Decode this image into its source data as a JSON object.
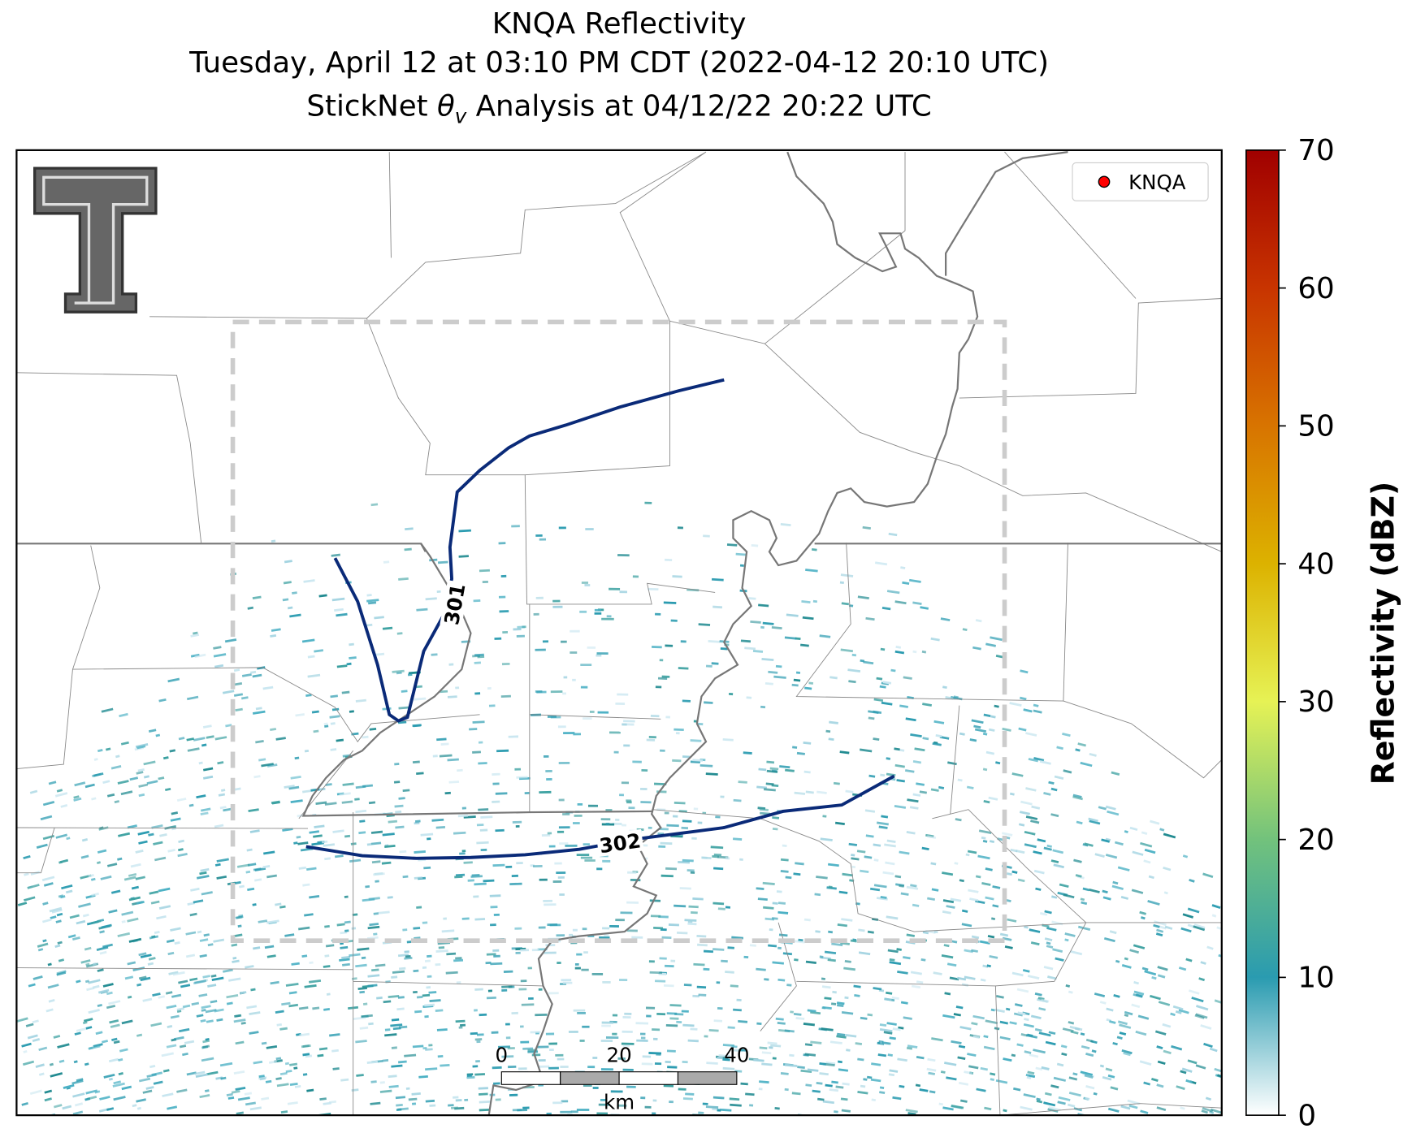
{
  "title": {
    "line1": "KNQA Reflectivity",
    "line2": "Tuesday, April 12 at 03:10 PM CDT (2022-04-12 20:10 UTC)",
    "line3": {
      "prefix": "StickNet ",
      "symbol": "θ",
      "subscript": "v",
      "suffix": " Analysis at 04/12/22 20:22 UTC"
    }
  },
  "legend": {
    "label": "KNQA",
    "color": "#ff0000"
  },
  "colorbar": {
    "label": "Reflectivity (dBZ)",
    "lim": [
      0,
      70
    ],
    "ticks": [
      0,
      10,
      20,
      30,
      40,
      50,
      60,
      70
    ],
    "colors": [
      "#ffffff",
      "#2a9bb0",
      "#72c27c",
      "#e6f255",
      "#dcb200",
      "#d87400",
      "#c83400",
      "#a00000"
    ]
  },
  "contours": [
    {
      "level": 301,
      "color": "#0a2a78"
    },
    {
      "level": 302,
      "color": "#0a2a78"
    }
  ],
  "scale_bar": {
    "ticks": [
      0,
      20,
      40
    ],
    "unit": "km"
  }
}
